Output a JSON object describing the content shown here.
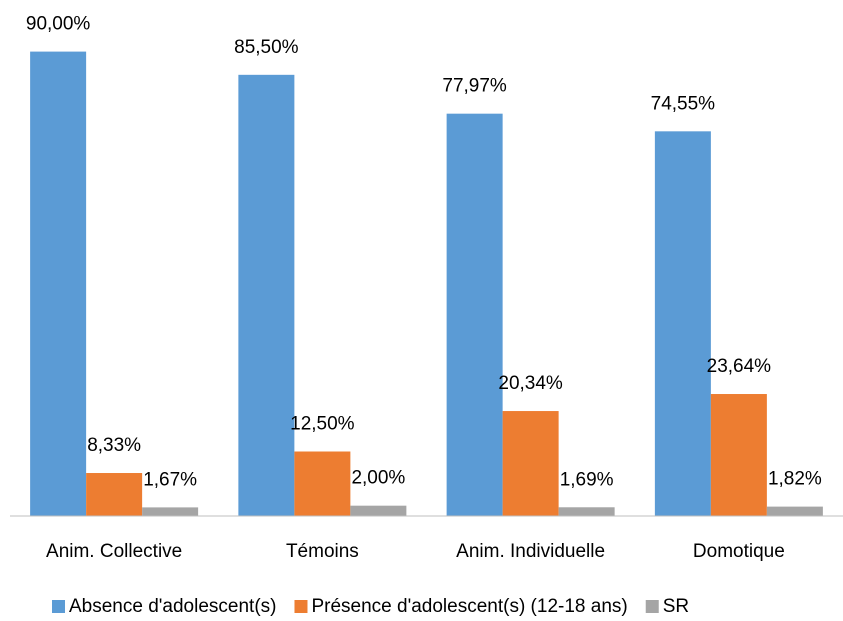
{
  "chart_data": {
    "type": "bar",
    "categories": [
      "Anim. Collective",
      "Témoins",
      "Anim. Individuelle",
      "Domotique"
    ],
    "series": [
      {
        "name": "Absence d'adolescent(s)",
        "color": "#5b9bd5",
        "values": [
          90,
          85.5,
          77.97,
          74.55
        ],
        "value_labels": [
          "90,00%",
          "85,50%",
          "77,97%",
          "74,55%"
        ]
      },
      {
        "name": "Présence d'adolescent(s) (12-18 ans)",
        "color": "#ed7d31",
        "values": [
          8.33,
          12.5,
          20.34,
          23.64
        ],
        "value_labels": [
          "8,33%",
          "12,50%",
          "20,34%",
          "23,64%"
        ]
      },
      {
        "name": "SR",
        "color": "#a5a5a5",
        "values": [
          1.67,
          2,
          1.69,
          1.82
        ],
        "value_labels": [
          "1,67%",
          "2,00%",
          "1,69%",
          "1,82%"
        ]
      }
    ],
    "ylim": [
      0,
      100
    ],
    "legend": "bottom"
  }
}
